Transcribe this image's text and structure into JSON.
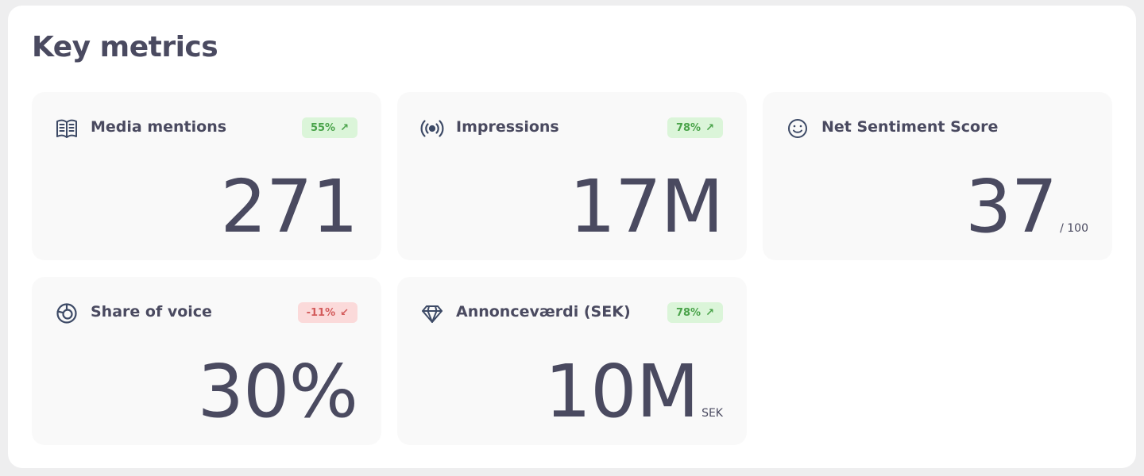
{
  "title": "Key metrics",
  "colors": {
    "positive_bg": "#dbf5d9",
    "positive_text": "#4aa34a",
    "negative_bg": "#fbdada",
    "negative_text": "#d35b5b",
    "text": "#4a4a60"
  },
  "cards": [
    {
      "icon": "newspaper-icon",
      "label": "Media mentions",
      "badge": "55%",
      "trend": "up",
      "value": "271",
      "unit": ""
    },
    {
      "icon": "broadcast-icon",
      "label": "Impressions",
      "badge": "78%",
      "trend": "up",
      "value": "17M",
      "unit": ""
    },
    {
      "icon": "smiley-icon",
      "label": "Net Sentiment Score",
      "badge": "",
      "trend": "",
      "value": "37",
      "unit": "/ 100"
    },
    {
      "icon": "pie-chart-icon",
      "label": "Share of voice",
      "badge": "-11%",
      "trend": "down",
      "value": "30%",
      "unit": ""
    },
    {
      "icon": "diamond-icon",
      "label": "Annonceværdi (SEK)",
      "badge": "78%",
      "trend": "up",
      "value": "10M",
      "unit": "SEK"
    }
  ]
}
